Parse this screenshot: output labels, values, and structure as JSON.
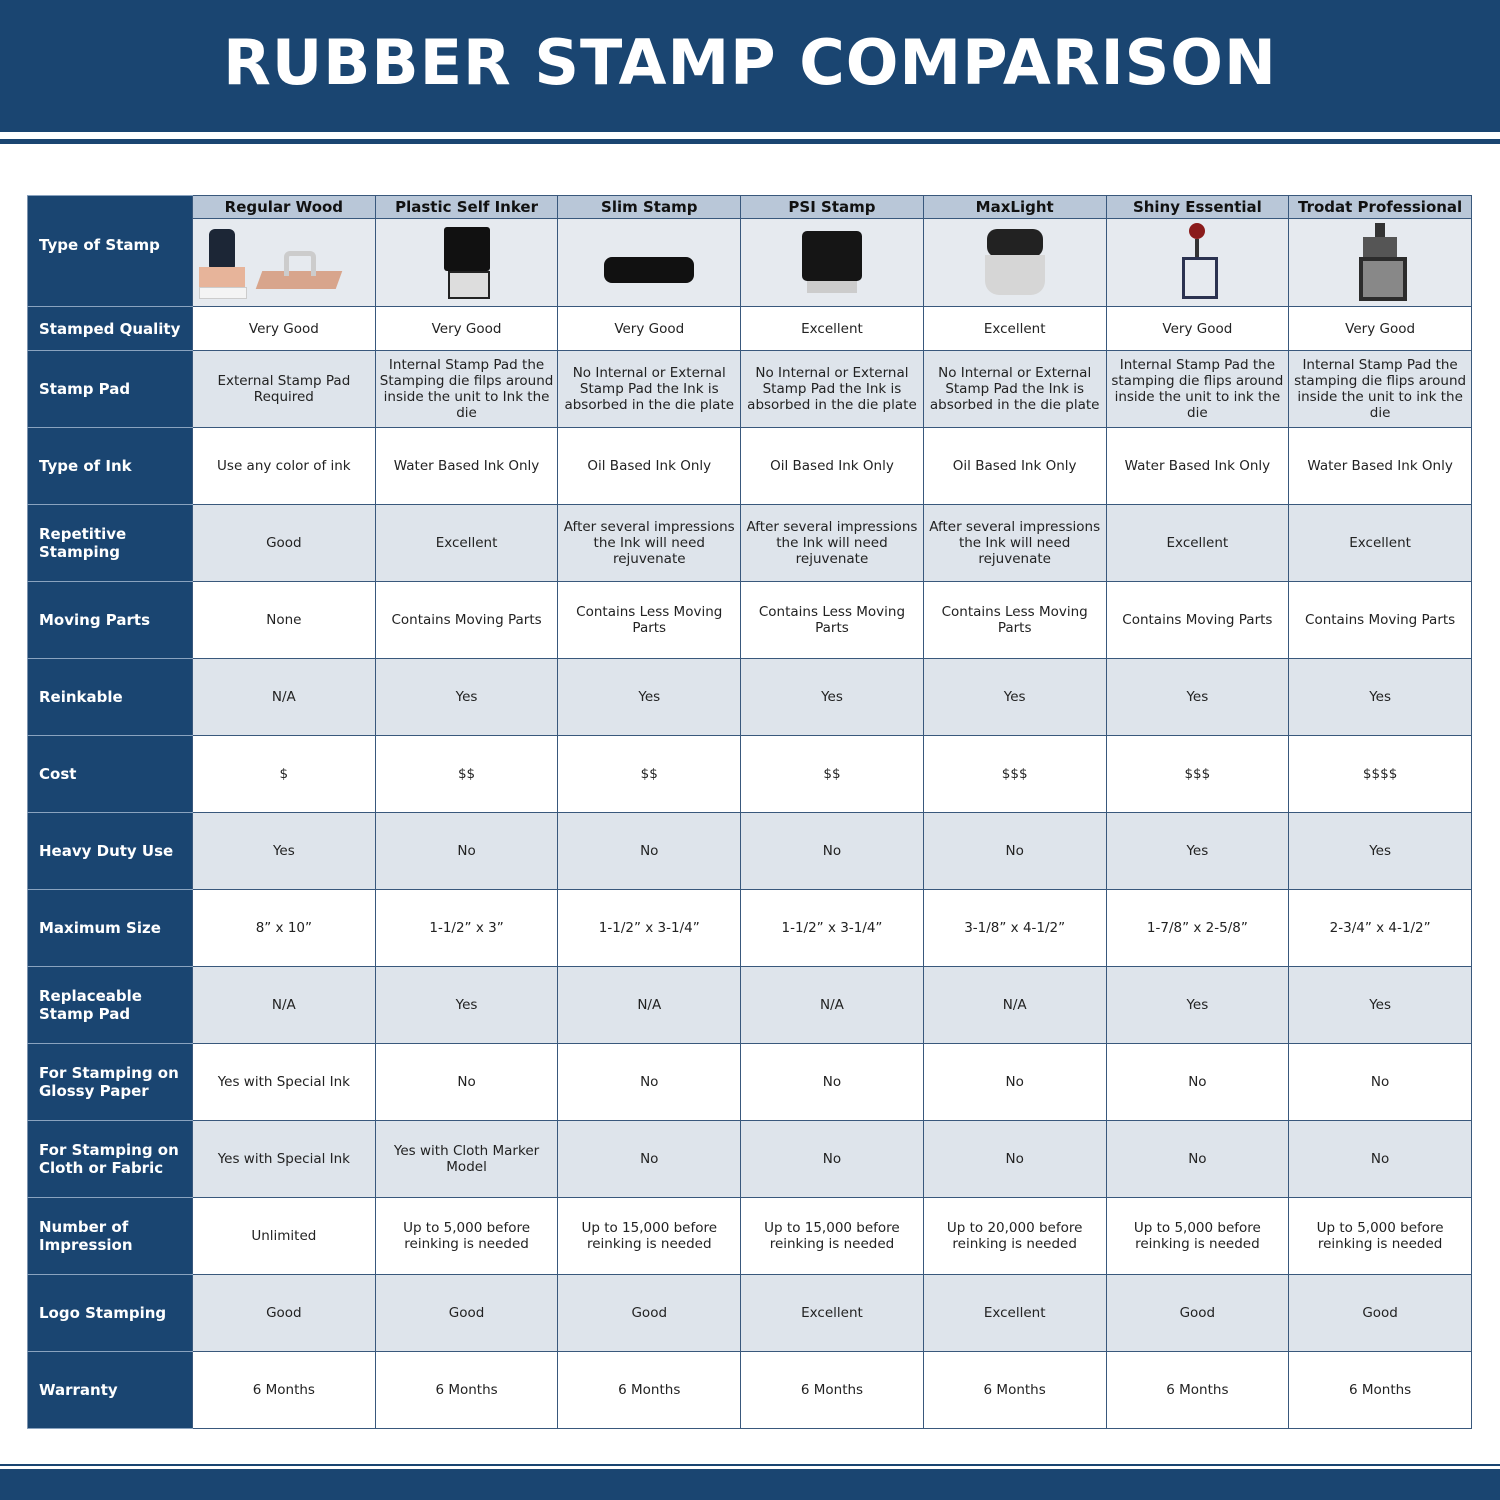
{
  "title": "RUBBER STAMP COMPARISON",
  "columns": [
    "Regular Wood",
    "Plastic Self Inker",
    "Slim Stamp",
    "PSI Stamp",
    "MaxLight",
    "Shiny Essential",
    "Trodat Professional"
  ],
  "image_row_label": "Type of Stamp",
  "stamp_icons": [
    "wood-handle-stamp-icon",
    "self-inking-stamp-icon",
    "slim-stamp-icon",
    "psi-stamp-icon",
    "maxlight-stamp-icon",
    "shiny-essential-stamp-icon",
    "trodat-professional-stamp-icon"
  ],
  "rows": [
    {
      "label": "Stamped Quality",
      "values": [
        "Very Good",
        "Very Good",
        "Very Good",
        "Excellent",
        "Excellent",
        "Very Good",
        "Very Good"
      ]
    },
    {
      "label": "Stamp Pad",
      "values": [
        "External Stamp Pad Required",
        "Internal Stamp Pad the Stamping die filps around inside the unit to Ink the die",
        "No Internal or External Stamp Pad the Ink is absorbed in the die plate",
        "No Internal or External Stamp Pad the Ink is absorbed in the die plate",
        "No Internal or External Stamp Pad the Ink is absorbed in the die plate",
        "Internal Stamp Pad the stamping die flips around inside the unit to ink the die",
        "Internal Stamp Pad the stamping die flips around inside the unit to ink the die"
      ]
    },
    {
      "label": "Type of Ink",
      "values": [
        "Use any color of ink",
        "Water Based Ink Only",
        "Oil Based Ink Only",
        "Oil Based Ink Only",
        "Oil Based Ink Only",
        "Water Based Ink Only",
        "Water Based Ink Only"
      ]
    },
    {
      "label": "Repetitive Stamping",
      "values": [
        "Good",
        "Excellent",
        "After several impressions the Ink will need rejuvenate",
        "After several impressions the Ink will need rejuvenate",
        "After several impressions the Ink will need rejuvenate",
        "Excellent",
        "Excellent"
      ]
    },
    {
      "label": "Moving Parts",
      "values": [
        "None",
        "Contains Moving Parts",
        "Contains Less Moving Parts",
        "Contains Less Moving Parts",
        "Contains Less Moving Parts",
        "Contains Moving Parts",
        "Contains Moving Parts"
      ]
    },
    {
      "label": "Reinkable",
      "values": [
        "N/A",
        "Yes",
        "Yes",
        "Yes",
        "Yes",
        "Yes",
        "Yes"
      ]
    },
    {
      "label": "Cost",
      "values": [
        "$",
        "$$",
        "$$",
        "$$",
        "$$$",
        "$$$",
        "$$$$"
      ]
    },
    {
      "label": "Heavy Duty Use",
      "values": [
        "Yes",
        "No",
        "No",
        "No",
        "No",
        "Yes",
        "Yes"
      ]
    },
    {
      "label": "Maximum Size",
      "values": [
        "8” x 10”",
        "1-1/2” x 3”",
        "1-1/2” x 3-1/4”",
        "1-1/2” x 3-1/4”",
        "3-1/8” x 4-1/2”",
        "1-7/8” x 2-5/8”",
        "2-3/4” x 4-1/2”"
      ]
    },
    {
      "label": "Replaceable Stamp Pad",
      "values": [
        "N/A",
        "Yes",
        "N/A",
        "N/A",
        "N/A",
        "Yes",
        "Yes"
      ]
    },
    {
      "label": "For Stamping on Glossy Paper",
      "values": [
        "Yes with Special Ink",
        "No",
        "No",
        "No",
        "No",
        "No",
        "No"
      ]
    },
    {
      "label": "For Stamping on Cloth or Fabric",
      "values": [
        "Yes with Special Ink",
        "Yes with Cloth Marker Model",
        "No",
        "No",
        "No",
        "No",
        "No"
      ]
    },
    {
      "label": "Number of Impression",
      "values": [
        "Unlimited",
        "Up to 5,000 before reinking is needed",
        "Up to 15,000 before reinking is needed",
        "Up to 15,000 before reinking is needed",
        "Up to 20,000 before reinking is needed",
        "Up to 5,000 before reinking is needed",
        "Up to 5,000 before reinking is needed"
      ]
    },
    {
      "label": "Logo Stamping",
      "values": [
        "Good",
        "Good",
        "Good",
        "Excellent",
        "Excellent",
        "Good",
        "Good"
      ]
    },
    {
      "label": "Warranty",
      "values": [
        "6 Months",
        "6 Months",
        "6 Months",
        "6 Months",
        "6 Months",
        "6 Months",
        "6 Months"
      ]
    }
  ],
  "colors": {
    "brand": "#1a4571",
    "header_cell": "#b9c7d8",
    "alt_row": "#dee4eb"
  }
}
